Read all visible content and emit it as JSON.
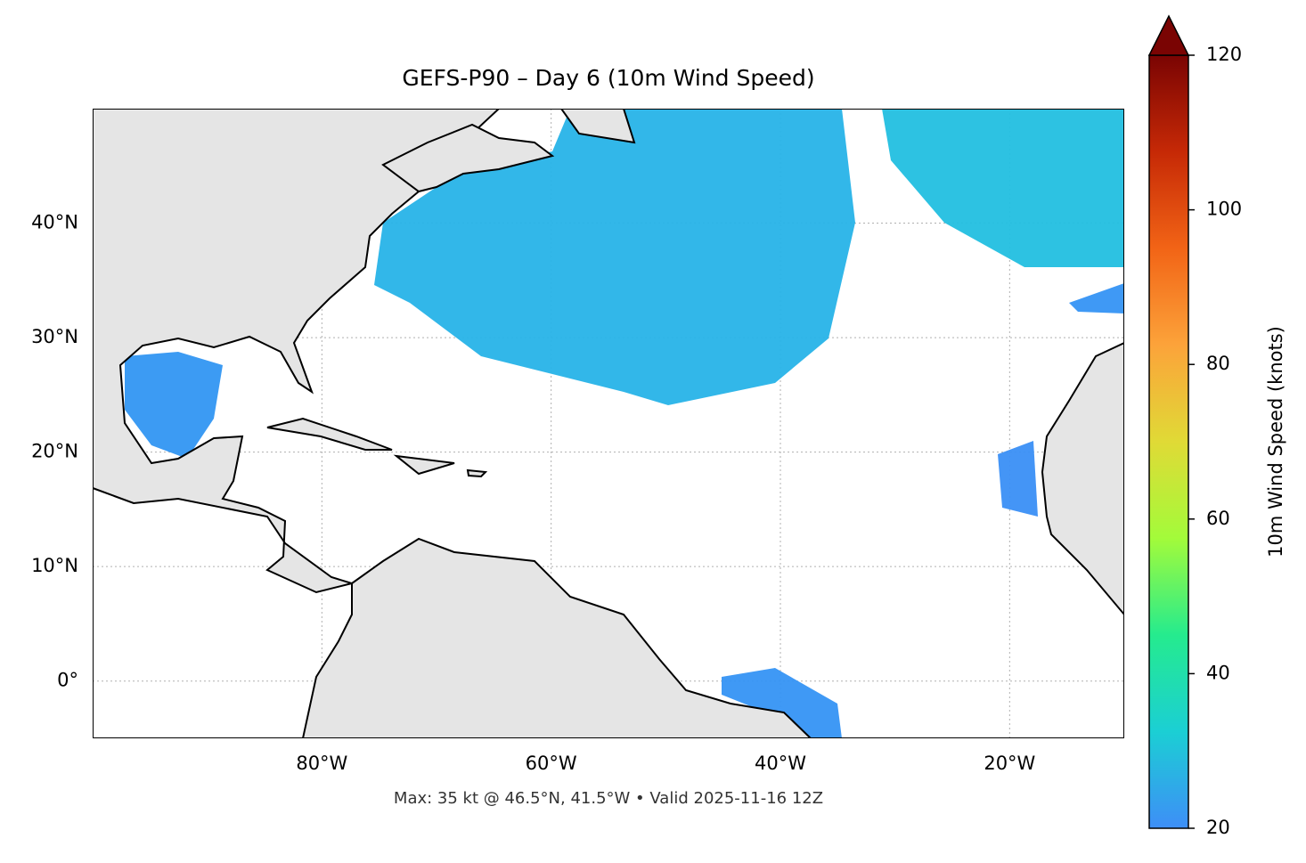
{
  "chart_data": {
    "type": "map",
    "title": "GEFS-P90 – Day 6 (10m Wind Speed)",
    "note": "Max: 35 kt @ 46.5°N, 41.5°W • Valid 2025-11-16 12Z",
    "xlim": [
      -100,
      -10
    ],
    "ylim": [
      -5,
      50
    ],
    "xticks": [
      {
        "value": -80,
        "label": "80°W"
      },
      {
        "value": -60,
        "label": "60°W"
      },
      {
        "value": -40,
        "label": "40°W"
      },
      {
        "value": -20,
        "label": "20°W"
      }
    ],
    "yticks": [
      {
        "value": 0,
        "label": "0°"
      },
      {
        "value": 10,
        "label": "10°N"
      },
      {
        "value": 20,
        "label": "20°N"
      },
      {
        "value": 30,
        "label": "30°N"
      },
      {
        "value": 40,
        "label": "40°N"
      }
    ],
    "grid": true,
    "colorbar": {
      "label": "10m Wind Speed (knots)",
      "lim": [
        20,
        120
      ],
      "ticks": [
        20,
        40,
        60,
        80,
        100,
        120
      ],
      "colors": [
        "#3e8ef7",
        "#1bcfd4",
        "#25eb8e",
        "#a3fb3a",
        "#e0da36",
        "#fca33a",
        "#f26416",
        "#c62906",
        "#7a0403"
      ],
      "extend": "max"
    }
  }
}
